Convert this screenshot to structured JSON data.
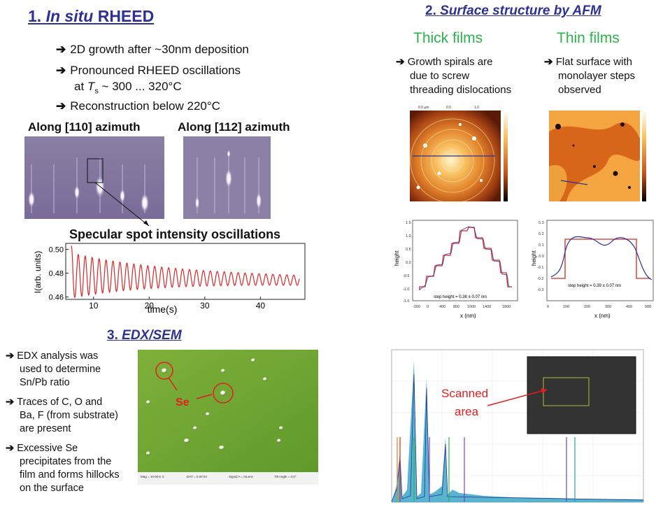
{
  "rheed": {
    "title_num": "1.",
    "title_italic": "In situ",
    "title_rest": "RHEED",
    "bullets": [
      "2D growth after ~30nm deposition",
      "Pronounced RHEED oscillations",
      "at",
      "T",
      "s",
      "~ 300 ... 320°C",
      "Reconstruction below 220°C"
    ],
    "label_110": "Along [110] azimuth",
    "label_112": "Along [112] azimuth",
    "osc_title": "Specular spot intensity oscillations"
  },
  "chart_data": {
    "type": "line",
    "title": "Specular spot intensity oscillations",
    "xlabel": "time(s)",
    "ylabel": "I(arb. units)",
    "xlim": [
      5,
      48
    ],
    "ylim": [
      0.458,
      0.505
    ],
    "xticks": [
      "10",
      "20",
      "30",
      "40"
    ],
    "yticks": [
      "0.46",
      "0.48",
      "0.50"
    ],
    "x_start": 6,
    "x_end": 47,
    "period": 1.25,
    "baseline_start": 0.478,
    "baseline_end": 0.474,
    "amplitude_start": 0.016,
    "amplitude_end": 0.003,
    "initial_value": 0.503
  },
  "afm": {
    "title_num": "2.",
    "title_text": "Surface structure by AFM",
    "thick_head": "Thick films",
    "thin_head": "Thin films",
    "thick_bullet": [
      "Growth spirals are",
      "due to screw",
      "threading dislocations"
    ],
    "thin_bullet": [
      "Flat surface with",
      "monolayer steps",
      "observed"
    ],
    "thick_step": "step height = 0.38 ± 0.07 nm",
    "thin_step": "step height = 0.39 ± 0.07 nm",
    "height_label": "height",
    "x_label": "x (nm)"
  },
  "edx": {
    "title_num": "3.",
    "title_text": "EDX/SEM",
    "bullets": [
      [
        "EDX analysis was",
        "used to determine",
        "Sn/Pb ratio"
      ],
      [
        "Traces of C, O and",
        "Ba, F (from substrate)",
        "are present"
      ],
      [
        "Excessive Se",
        "precipitates from the",
        "film and forms hillocks",
        "on the surface"
      ]
    ],
    "se_label": "Se",
    "scanned": [
      "Scanned",
      "area"
    ]
  },
  "colors": {
    "title_blue": "#2e3192",
    "green": "#2bb24c",
    "red_label": "#e02020",
    "curve": "#d62828"
  }
}
